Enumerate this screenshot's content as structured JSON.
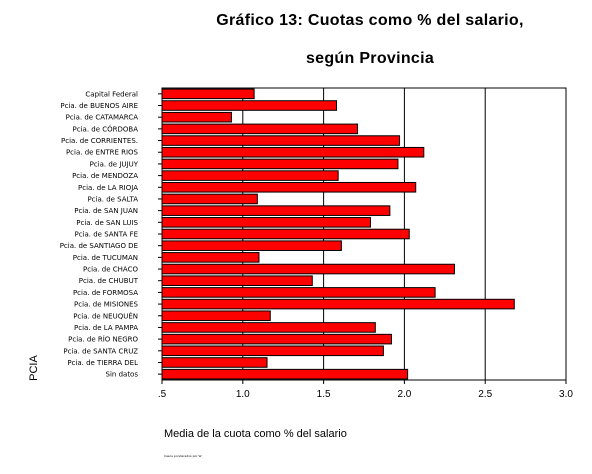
{
  "chart_data": {
    "type": "bar",
    "orientation": "horizontal",
    "title_line1": "Gráfico 13: Cuotas como % del salario,",
    "title_line2": "según Provincia",
    "xlabel": "Media de la cuota como % del salario",
    "ylabel": "PCIA",
    "source_note": "Casos ponderados por W",
    "xlim": [
      0.5,
      3.0
    ],
    "xticks": [
      ".5",
      "1.0",
      "1.5",
      "2.0",
      "2.5",
      "3.0"
    ],
    "xtick_values": [
      0.5,
      1.0,
      1.5,
      2.0,
      2.5,
      3.0
    ],
    "gridlines_at": [
      1.0,
      1.5,
      2.0,
      2.5
    ],
    "bar_color": "#ff0000",
    "categories": [
      "Capital Federal",
      "Pcia. de BUENOS AIRE",
      "Pcia. de CATAMARCA",
      "Pcia. de CÓRDOBA",
      "Pcia. de CORRIENTES.",
      "Pcia. de ENTRE RIOS",
      "Pcia. de JUJUY",
      "Pcia. de MENDOZA",
      "Pcia. de LA RIOJA",
      "Pcia. de SALTA",
      "Pcia. de SAN JUAN",
      "Pcia. de SAN LUIS",
      "Pcia. de SANTA FE",
      "Pcia. de SANTIAGO DE",
      "Pcia. de TUCUMAN",
      "Pcia. de CHACO",
      "Pcia. de CHUBUT",
      "Pcia. de FORMOSA",
      "Pcia. de MISIONES",
      "Pcia. de NEUQUÉN",
      "Pcia. de LA PAMPA",
      "Pcia. de RÍO NEGRO",
      "Pcia. de SANTA CRUZ",
      "Pcia. de TIERRA DEL",
      "Sin datos"
    ],
    "values": [
      1.07,
      1.58,
      0.93,
      1.71,
      1.97,
      2.12,
      1.96,
      1.59,
      2.07,
      1.09,
      1.91,
      1.79,
      2.03,
      1.61,
      1.1,
      2.31,
      1.43,
      2.19,
      2.68,
      1.17,
      1.82,
      1.92,
      1.87,
      1.15,
      2.02
    ]
  }
}
